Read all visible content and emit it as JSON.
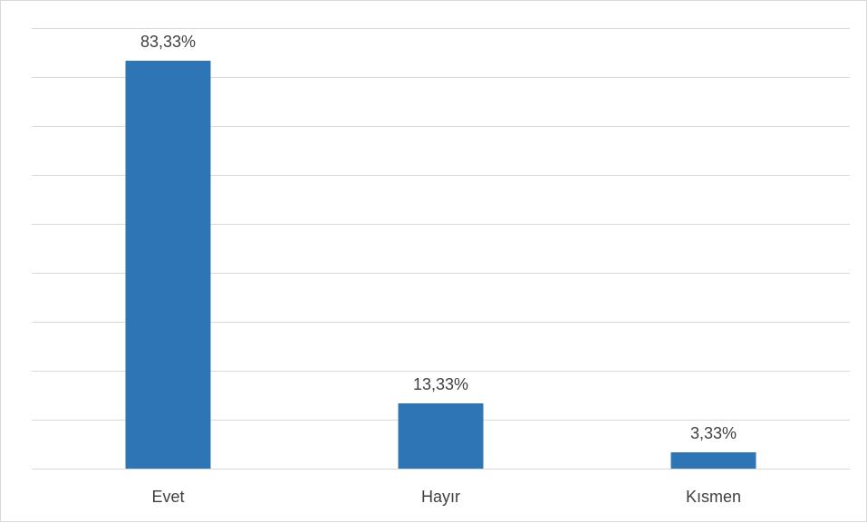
{
  "chart_data": {
    "type": "bar",
    "categories": [
      "Evet",
      "Hayır",
      "Kısmen"
    ],
    "values": [
      83.33,
      13.33,
      3.33
    ],
    "data_labels": [
      "83,33%",
      "13,33%",
      "3,33%"
    ],
    "title": "",
    "xlabel": "",
    "ylabel": "",
    "ylim": [
      0,
      90
    ],
    "y_unit": "%",
    "grid": true,
    "y_axis_labels_visible": false,
    "legend": "none",
    "bar_color": "#2e75b6",
    "gridline_color": "#d9d9d9"
  }
}
